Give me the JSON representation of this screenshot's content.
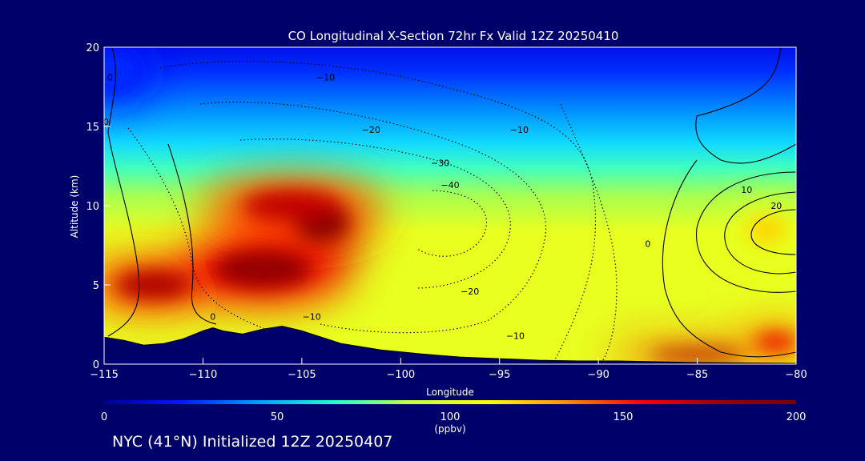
{
  "chart_data": {
    "type": "heatmap",
    "title": "CO Longitudinal X-Section 72hr  Fx Valid 12Z 20250410",
    "xlabel": "Longitude",
    "ylabel": "Altitude (km)",
    "xlim": [
      -115,
      -80
    ],
    "ylim": [
      0,
      20
    ],
    "x_ticks": [
      "−115",
      "−110",
      "−105",
      "−100",
      "−95",
      "−90",
      "−85",
      "−80"
    ],
    "y_ticks": [
      "0",
      "5",
      "10",
      "15",
      "20"
    ],
    "colorbar": {
      "range": [
        0,
        200
      ],
      "unit": "(ppbv)",
      "ticks": [
        "0",
        "50",
        "100",
        "150",
        "200"
      ],
      "colors": [
        "#000090",
        "#0018ff",
        "#00a0ff",
        "#20ffd0",
        "#c8ff40",
        "#ffff00",
        "#ff9000",
        "#ff0000",
        "#a00000",
        "#7a0000"
      ]
    },
    "co_field": [
      {
        "lon": -112.5,
        "alt": 5.0,
        "value": 175,
        "rx": 3.5,
        "ry": 1.6
      },
      {
        "lon": -107.0,
        "alt": 6.0,
        "value": 185,
        "rx": 4.5,
        "ry": 2.2
      },
      {
        "lon": -104.0,
        "alt": 9.0,
        "value": 195,
        "rx": 2.5,
        "ry": 2.2
      },
      {
        "lon": -105.5,
        "alt": 10.0,
        "value": 170,
        "rx": 4.5,
        "ry": 1.8
      },
      {
        "lon": -85.0,
        "alt": 0.6,
        "value": 175,
        "rx": 4.5,
        "ry": 0.6
      },
      {
        "lon": -81.0,
        "alt": 1.4,
        "value": 160,
        "rx": 2.0,
        "ry": 1.0
      },
      {
        "lon": -81.5,
        "alt": 8.5,
        "value": 120,
        "rx": 1.8,
        "ry": 1.6
      },
      {
        "lon": -114.5,
        "alt": 18.5,
        "value": 25,
        "rx": 2.0,
        "ry": 2.0
      }
    ],
    "contour_labels": [
      {
        "text": "0",
        "lon": -114.7,
        "alt": 17.9
      },
      {
        "text": "0",
        "lon": -114.9,
        "alt": 15.1
      },
      {
        "text": "0",
        "lon": -109.5,
        "alt": 2.8
      },
      {
        "text": "−10",
        "lon": -104.5,
        "alt": 2.8
      },
      {
        "text": "−10",
        "lon": -103.8,
        "alt": 17.9
      },
      {
        "text": "−20",
        "lon": -101.5,
        "alt": 14.6
      },
      {
        "text": "−30",
        "lon": -98.0,
        "alt": 12.5
      },
      {
        "text": "−40",
        "lon": -97.5,
        "alt": 11.1
      },
      {
        "text": "−20",
        "lon": -96.5,
        "alt": 4.4
      },
      {
        "text": "−10",
        "lon": -94.0,
        "alt": 14.6
      },
      {
        "text": "−10",
        "lon": -94.2,
        "alt": 1.6
      },
      {
        "text": "0",
        "lon": -87.5,
        "alt": 7.4
      },
      {
        "text": "10",
        "lon": -82.5,
        "alt": 10.8
      },
      {
        "text": "20",
        "lon": -81.0,
        "alt": 9.8
      }
    ],
    "terrain": [
      {
        "lon": -115.0,
        "alt": 1.7
      },
      {
        "lon": -114.0,
        "alt": 1.5
      },
      {
        "lon": -113.0,
        "alt": 1.2
      },
      {
        "lon": -112.0,
        "alt": 1.3
      },
      {
        "lon": -111.0,
        "alt": 1.6
      },
      {
        "lon": -110.0,
        "alt": 2.1
      },
      {
        "lon": -109.5,
        "alt": 2.3
      },
      {
        "lon": -109.0,
        "alt": 2.1
      },
      {
        "lon": -108.0,
        "alt": 1.9
      },
      {
        "lon": -107.0,
        "alt": 2.2
      },
      {
        "lon": -106.0,
        "alt": 2.4
      },
      {
        "lon": -105.0,
        "alt": 2.1
      },
      {
        "lon": -104.0,
        "alt": 1.7
      },
      {
        "lon": -103.0,
        "alt": 1.3
      },
      {
        "lon": -101.0,
        "alt": 0.9
      },
      {
        "lon": -99.0,
        "alt": 0.65
      },
      {
        "lon": -97.0,
        "alt": 0.45
      },
      {
        "lon": -95.0,
        "alt": 0.35
      },
      {
        "lon": -93.0,
        "alt": 0.25
      },
      {
        "lon": -91.0,
        "alt": 0.2
      },
      {
        "lon": -89.0,
        "alt": 0.2
      },
      {
        "lon": -87.0,
        "alt": 0.15
      },
      {
        "lon": -85.0,
        "alt": 0.1
      },
      {
        "lon": -80.0,
        "alt": 0.05
      }
    ]
  },
  "footer": {
    "location_text": "NYC (41°N) Initialized 12Z 20250407"
  }
}
